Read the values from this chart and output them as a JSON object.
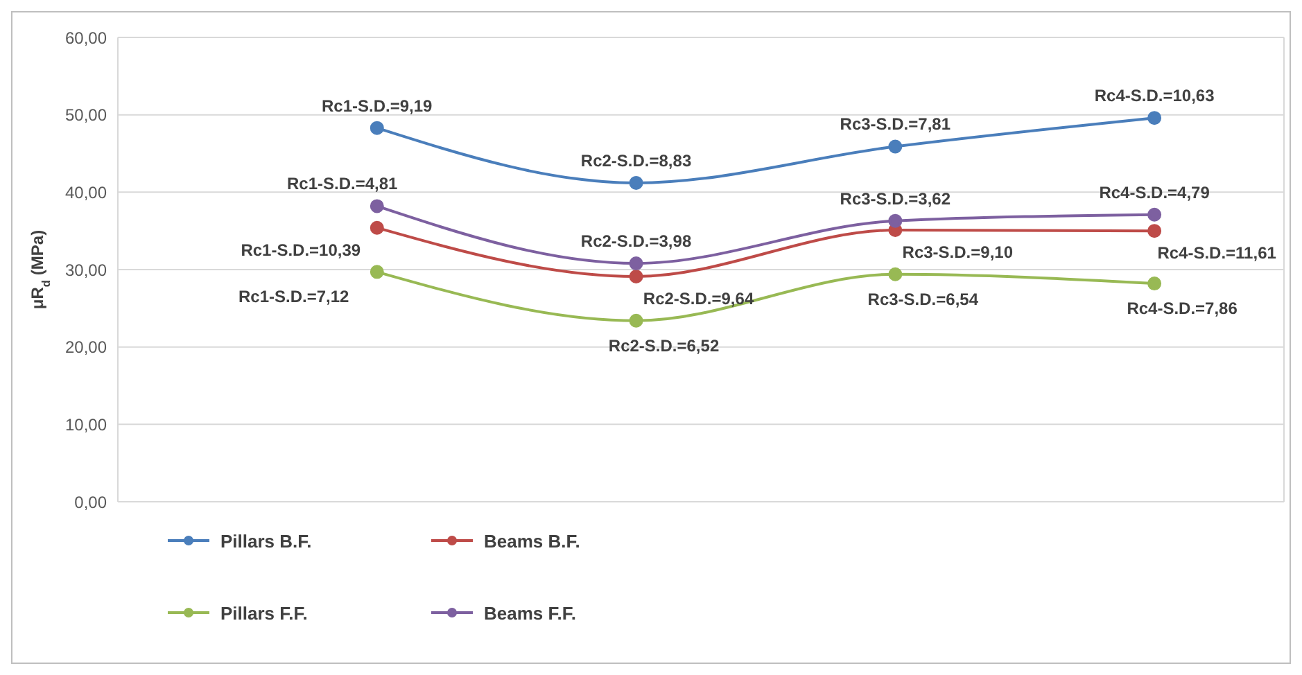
{
  "chart_data": {
    "type": "line",
    "ylabel": "μR$_{d}$ (MPa)",
    "categories": [
      null,
      null,
      null,
      null
    ],
    "series": [
      {
        "name": "Pillars B.F.",
        "color": "#4a7ebb",
        "values": [
          48.3,
          41.2,
          45.9,
          49.6
        ],
        "value_labels": [
          "Rc1-S.D.=9,19",
          "Rc2-S.D.=8,83",
          "Rc3-S.D.=7,81",
          "Rc4-S.D.=10,63"
        ]
      },
      {
        "name": "Beams B.F.",
        "color": "#be4b48",
        "values": [
          35.4,
          29.1,
          35.1,
          35.0
        ],
        "value_labels": [
          "Rc1-S.D.=10,39",
          "Rc2-S.D.=9,64",
          "Rc3-S.D.=9,10",
          "Rc4-S.D.=11,61"
        ]
      },
      {
        "name": "Pillars F.F.",
        "color": "#98b954",
        "values": [
          29.7,
          23.4,
          29.4,
          28.2
        ],
        "value_labels": [
          "Rc1-S.D.=7,12",
          "Rc2-S.D.=6,52",
          "Rc3-S.D.=6,54",
          "Rc4-S.D.=7,86"
        ]
      },
      {
        "name": "Beams F.F.",
        "color": "#7d60a0",
        "values": [
          38.2,
          30.8,
          36.3,
          37.1
        ],
        "value_labels": [
          "Rc1-S.D.=4,81",
          "Rc2-S.D.=3,98",
          "Rc3-S.D.=3,62",
          "Rc4-S.D.=4,79"
        ]
      }
    ],
    "ylim": [
      0,
      60
    ],
    "yticks": [
      {
        "value": 0,
        "label": "0,00"
      },
      {
        "value": 10,
        "label": "10,00"
      },
      {
        "value": 20,
        "label": "20,00"
      },
      {
        "value": 30,
        "label": "30,00"
      },
      {
        "value": 40,
        "label": "40,00"
      },
      {
        "value": 50,
        "label": "50,00"
      },
      {
        "value": 60,
        "label": "60,00"
      }
    ],
    "grid": true,
    "legend": "bottom left",
    "marker": "circle",
    "line_style": "solid",
    "tick_labels": "y"
  }
}
